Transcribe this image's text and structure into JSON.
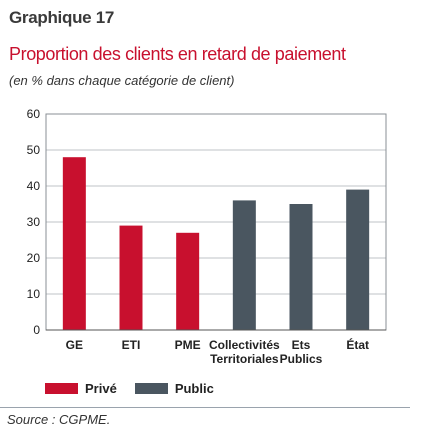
{
  "figure_label": "Graphique 17",
  "title": "Proportion des clients en retard de paiement",
  "subtitle": "(en % dans chaque catégorie de client)",
  "source": "Source : CGPME.",
  "colors": {
    "prive": "#c8102e",
    "public": "#4a5660",
    "title": "#c8102e"
  },
  "chart_data": {
    "type": "bar",
    "categories": [
      "GE",
      "ETI",
      "PME",
      "Collectivités Territoriales",
      "Ets Publics",
      "État"
    ],
    "category_lines": [
      [
        "GE"
      ],
      [
        "ETI"
      ],
      [
        "PME"
      ],
      [
        "Collectivités",
        "Territoriales"
      ],
      [
        "Ets",
        "Publics"
      ],
      [
        "État"
      ]
    ],
    "values": [
      48,
      29,
      27,
      36,
      35,
      39
    ],
    "groups": [
      "Privé",
      "Privé",
      "Privé",
      "Public",
      "Public",
      "Public"
    ],
    "legend": [
      {
        "name": "Privé",
        "color": "#c8102e"
      },
      {
        "name": "Public",
        "color": "#4a5660"
      }
    ],
    "yticks": [
      0,
      10,
      20,
      30,
      40,
      50,
      60
    ],
    "ylim": [
      0,
      60
    ],
    "grid": true,
    "legend_position": "bottom-left"
  }
}
